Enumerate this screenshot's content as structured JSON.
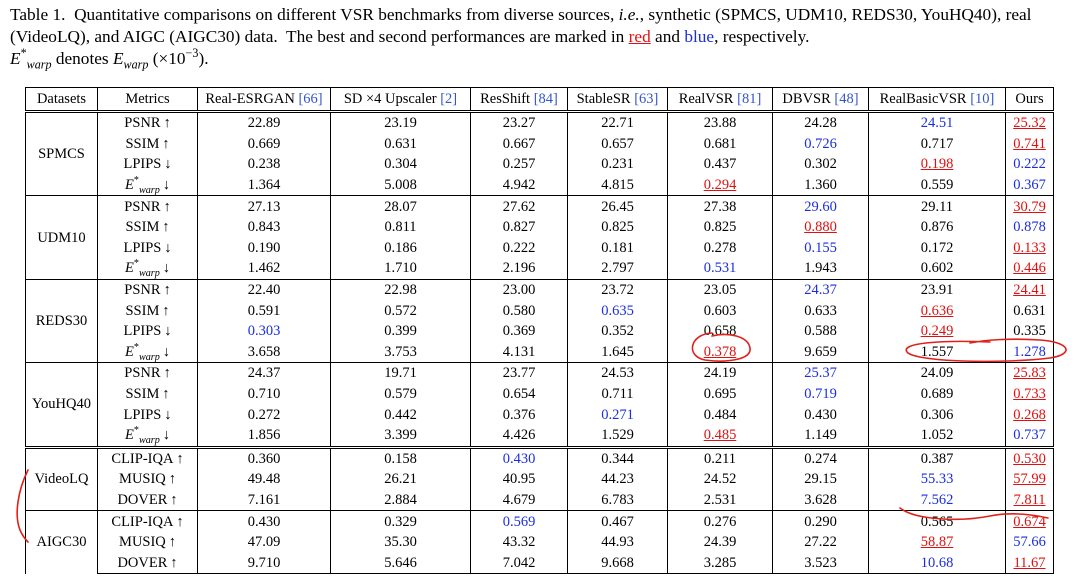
{
  "caption": {
    "label": "Table 1.",
    "text1": "Quantitative comparisons on different VSR benchmarks from diverse sources, ",
    "ie": "i.e.",
    "text2": ", synthetic (SPMCS, UDM10, REDS30, YouHQ40), real (VideoLQ), and AIGC (AIGC30) data.  The best and second performances are marked in ",
    "red": "red",
    "and": " and ",
    "blue": "blue",
    "text3": ", respectively.",
    "note": {
      "sym": "E",
      "sup": "*",
      "sub": "warp",
      "text1": " denotes ",
      "sym2": "E",
      "sub2": "warp",
      "text2": " (×10",
      "exp": "−3",
      "text3": ")."
    }
  },
  "table": {
    "header": {
      "datasets": "Datasets",
      "metrics": "Metrics",
      "methods": [
        {
          "name": "Real-ESRGAN ",
          "ref": "[66]"
        },
        {
          "name": "SD ×4 Upscaler ",
          "ref": "[2]"
        },
        {
          "name": "ResShift ",
          "ref": "[84]"
        },
        {
          "name": "StableSR ",
          "ref": "[63]"
        },
        {
          "name": "RealVSR ",
          "ref": "[81]"
        },
        {
          "name": "DBVSR ",
          "ref": "[48]"
        },
        {
          "name": "RealBasicVSR ",
          "ref": "[10]"
        },
        {
          "name": "Ours"
        }
      ]
    },
    "groups": [
      {
        "dataset": "SPMCS",
        "rows": [
          {
            "metric": {
              "label": "PSNR",
              "arrow": "↑"
            },
            "values": [
              "22.89",
              "23.19",
              "23.27",
              "22.71",
              "23.88",
              "24.28",
              "24.51",
              "25.32"
            ],
            "best": 7,
            "second": 6
          },
          {
            "metric": {
              "label": "SSIM",
              "arrow": "↑"
            },
            "values": [
              "0.669",
              "0.631",
              "0.667",
              "0.657",
              "0.681",
              "0.726",
              "0.717",
              "0.741"
            ],
            "best": 7,
            "second": 5
          },
          {
            "metric": {
              "label": "LPIPS",
              "arrow": "↓"
            },
            "values": [
              "0.238",
              "0.304",
              "0.257",
              "0.231",
              "0.437",
              "0.302",
              "0.198",
              "0.222"
            ],
            "best": 6,
            "second": 7
          },
          {
            "metric": {
              "label": "E",
              "sup": "*",
              "sub": "warp",
              "arrow": "↓"
            },
            "values": [
              "1.364",
              "5.008",
              "4.942",
              "4.815",
              "0.294",
              "1.360",
              "0.559",
              "0.367"
            ],
            "best": 4,
            "second": 7
          }
        ]
      },
      {
        "dataset": "UDM10",
        "rows": [
          {
            "metric": {
              "label": "PSNR",
              "arrow": "↑"
            },
            "values": [
              "27.13",
              "28.07",
              "27.62",
              "26.45",
              "27.38",
              "29.60",
              "29.11",
              "30.79"
            ],
            "best": 7,
            "second": 5
          },
          {
            "metric": {
              "label": "SSIM",
              "arrow": "↑"
            },
            "values": [
              "0.843",
              "0.811",
              "0.827",
              "0.825",
              "0.825",
              "0.880",
              "0.876",
              "0.878"
            ],
            "best": 5,
            "second": 7
          },
          {
            "metric": {
              "label": "LPIPS",
              "arrow": "↓"
            },
            "values": [
              "0.190",
              "0.186",
              "0.222",
              "0.181",
              "0.278",
              "0.155",
              "0.172",
              "0.133"
            ],
            "best": 7,
            "second": 5
          },
          {
            "metric": {
              "label": "E",
              "sup": "*",
              "sub": "warp",
              "arrow": "↓"
            },
            "values": [
              "1.462",
              "1.710",
              "2.196",
              "2.797",
              "0.531",
              "1.943",
              "0.602",
              "0.446"
            ],
            "best": 7,
            "second": 4
          }
        ]
      },
      {
        "dataset": "REDS30",
        "rows": [
          {
            "metric": {
              "label": "PSNR",
              "arrow": "↑"
            },
            "values": [
              "22.40",
              "22.98",
              "23.00",
              "23.72",
              "23.05",
              "24.37",
              "23.91",
              "24.41"
            ],
            "best": 7,
            "second": 5
          },
          {
            "metric": {
              "label": "SSIM",
              "arrow": "↑"
            },
            "values": [
              "0.591",
              "0.572",
              "0.580",
              "0.635",
              "0.603",
              "0.633",
              "0.636",
              "0.631"
            ],
            "best": 6,
            "second": 3
          },
          {
            "metric": {
              "label": "LPIPS",
              "arrow": "↓"
            },
            "values": [
              "0.303",
              "0.399",
              "0.369",
              "0.352",
              "0.658",
              "0.588",
              "0.249",
              "0.335"
            ],
            "best": 6,
            "second": 0
          },
          {
            "metric": {
              "label": "E",
              "sup": "*",
              "sub": "warp",
              "arrow": "↓"
            },
            "values": [
              "3.658",
              "3.753",
              "4.131",
              "1.645",
              "0.378",
              "9.659",
              "1.557",
              "1.278"
            ],
            "best": 4,
            "second": 7
          }
        ]
      },
      {
        "dataset": "YouHQ40",
        "rows": [
          {
            "metric": {
              "label": "PSNR",
              "arrow": "↑"
            },
            "values": [
              "24.37",
              "19.71",
              "23.77",
              "24.53",
              "24.19",
              "25.37",
              "24.09",
              "25.83"
            ],
            "best": 7,
            "second": 5
          },
          {
            "metric": {
              "label": "SSIM",
              "arrow": "↑"
            },
            "values": [
              "0.710",
              "0.579",
              "0.654",
              "0.711",
              "0.695",
              "0.719",
              "0.689",
              "0.733"
            ],
            "best": 7,
            "second": 5
          },
          {
            "metric": {
              "label": "LPIPS",
              "arrow": "↓"
            },
            "values": [
              "0.272",
              "0.442",
              "0.376",
              "0.271",
              "0.484",
              "0.430",
              "0.306",
              "0.268"
            ],
            "best": 7,
            "second": 3
          },
          {
            "metric": {
              "label": "E",
              "sup": "*",
              "sub": "warp",
              "arrow": "↓"
            },
            "values": [
              "1.856",
              "3.399",
              "4.426",
              "1.529",
              "0.485",
              "1.149",
              "1.052",
              "0.737"
            ],
            "best": 4,
            "second": 7
          }
        ]
      },
      {
        "dataset": "VideoLQ",
        "rows": [
          {
            "metric": {
              "label": "CLIP-IQA",
              "arrow": "↑"
            },
            "values": [
              "0.360",
              "0.158",
              "0.430",
              "0.344",
              "0.211",
              "0.274",
              "0.387",
              "0.530"
            ],
            "best": 7,
            "second": 2
          },
          {
            "metric": {
              "label": "MUSIQ",
              "arrow": "↑"
            },
            "values": [
              "49.48",
              "26.21",
              "40.95",
              "44.23",
              "24.52",
              "29.15",
              "55.33",
              "57.99"
            ],
            "best": 7,
            "second": 6
          },
          {
            "metric": {
              "label": "DOVER",
              "arrow": "↑"
            },
            "values": [
              "7.161",
              "2.884",
              "4.679",
              "6.783",
              "2.531",
              "3.628",
              "7.562",
              "7.811"
            ],
            "best": 7,
            "second": 6
          }
        ]
      },
      {
        "dataset": "AIGC30",
        "rows": [
          {
            "metric": {
              "label": "CLIP-IQA",
              "arrow": "↑"
            },
            "values": [
              "0.430",
              "0.329",
              "0.569",
              "0.467",
              "0.276",
              "0.290",
              "0.565",
              "0.674"
            ],
            "best": 7,
            "second": 2
          },
          {
            "metric": {
              "label": "MUSIQ",
              "arrow": "↑"
            },
            "values": [
              "47.09",
              "35.30",
              "43.32",
              "44.93",
              "24.39",
              "27.22",
              "58.87",
              "57.66"
            ],
            "best": 6,
            "second": 7
          },
          {
            "metric": {
              "label": "DOVER",
              "arrow": "↑"
            },
            "values": [
              "9.710",
              "5.646",
              "7.042",
              "9.668",
              "3.285",
              "3.523",
              "10.68",
              "11.67"
            ],
            "best": 7,
            "second": 6
          }
        ]
      }
    ]
  }
}
